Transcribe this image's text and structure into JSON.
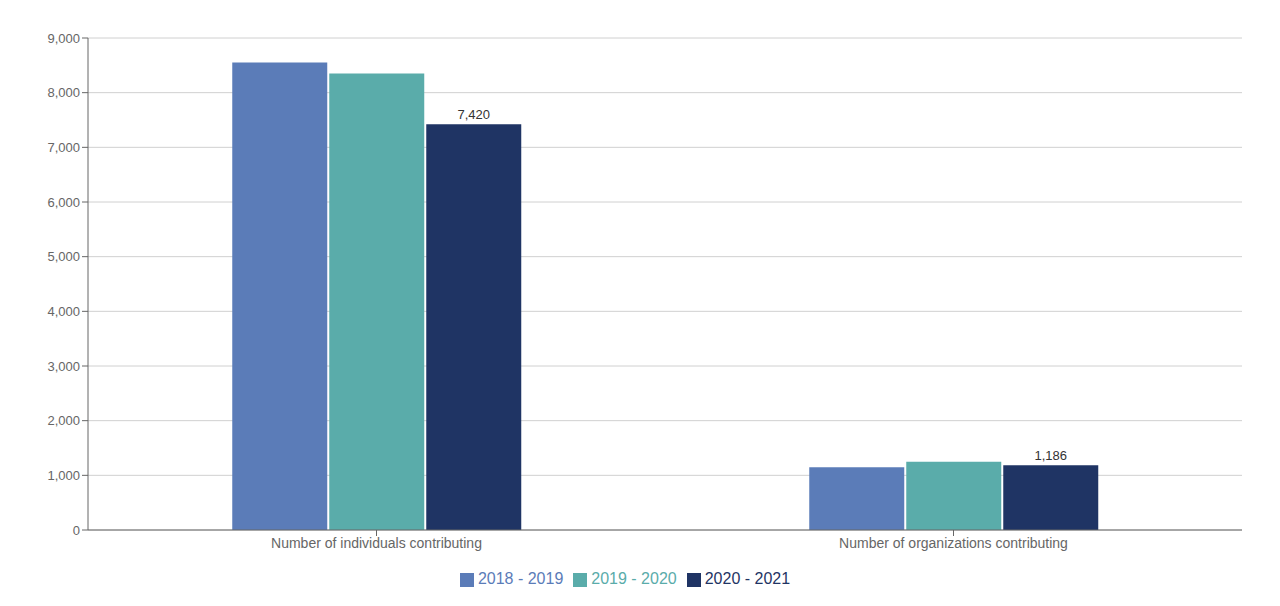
{
  "chart_data": {
    "type": "bar",
    "categories": [
      "Number of individuals contributing",
      "Number of organizations contributing"
    ],
    "series": [
      {
        "name": "2018 - 2019",
        "color": "#5b7cb8",
        "values": [
          8550,
          1150
        ]
      },
      {
        "name": "2019 - 2020",
        "color": "#5aacaa",
        "values": [
          8350,
          1250
        ]
      },
      {
        "name": "2020 - 2021",
        "color": "#1f3464",
        "values": [
          7420,
          1186
        ],
        "value_labels": [
          "7,420",
          "1,186"
        ]
      }
    ],
    "ylim": [
      0,
      9000
    ],
    "yticks": [
      0,
      {
        "value": 1000,
        "label": "1,000"
      },
      {
        "value": 2000,
        "label": "2,000"
      },
      {
        "value": 3000,
        "label": "3,000"
      },
      {
        "value": 4000,
        "label": "4,000"
      },
      {
        "value": 5000,
        "label": "5,000"
      },
      {
        "value": 6000,
        "label": "6,000"
      },
      {
        "value": 7000,
        "label": "7,000"
      },
      {
        "value": 8000,
        "label": "8,000"
      },
      {
        "value": 9000,
        "label": "9,000"
      }
    ],
    "grid": true,
    "legend": "bottom"
  }
}
